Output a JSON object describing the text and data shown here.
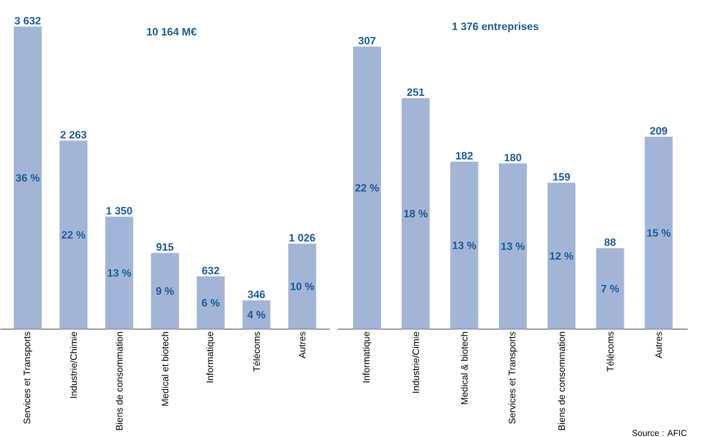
{
  "chart_data": [
    {
      "type": "bar",
      "title": "10 164 M€",
      "color": "#a3b5d6",
      "categories": [
        "Services et Transports",
        "Industrie/Chimie",
        "Biens de consommation",
        "Medical et biotech",
        "Informatique",
        "Télécoms",
        "Autres"
      ],
      "values": [
        3632,
        2263,
        1350,
        915,
        632,
        346,
        1026
      ],
      "value_labels": [
        "3 632",
        "2 263",
        "1 350",
        "915",
        "632",
        "346",
        "1 026"
      ],
      "annotations": [
        "36 %",
        "22 %",
        "13 %",
        "9 %",
        "6 %",
        "4 %",
        "10 %"
      ]
    },
    {
      "type": "bar",
      "title": "1 376 entreprises",
      "color": "#a3b5d6",
      "categories": [
        "Informatique",
        "Industrie/Cimie",
        "Medical & biotech",
        "Services et Transports",
        "Biens de consommation",
        "Télécoms",
        "Autres"
      ],
      "values": [
        307,
        251,
        182,
        180,
        159,
        88,
        209
      ],
      "data_labels": true,
      "annotations": [
        "22 %",
        "18 %",
        "13 %",
        "13 %",
        "12 %",
        "7 %",
        "15 %",
        "Source : AFIC"
      ]
    }
  ]
}
